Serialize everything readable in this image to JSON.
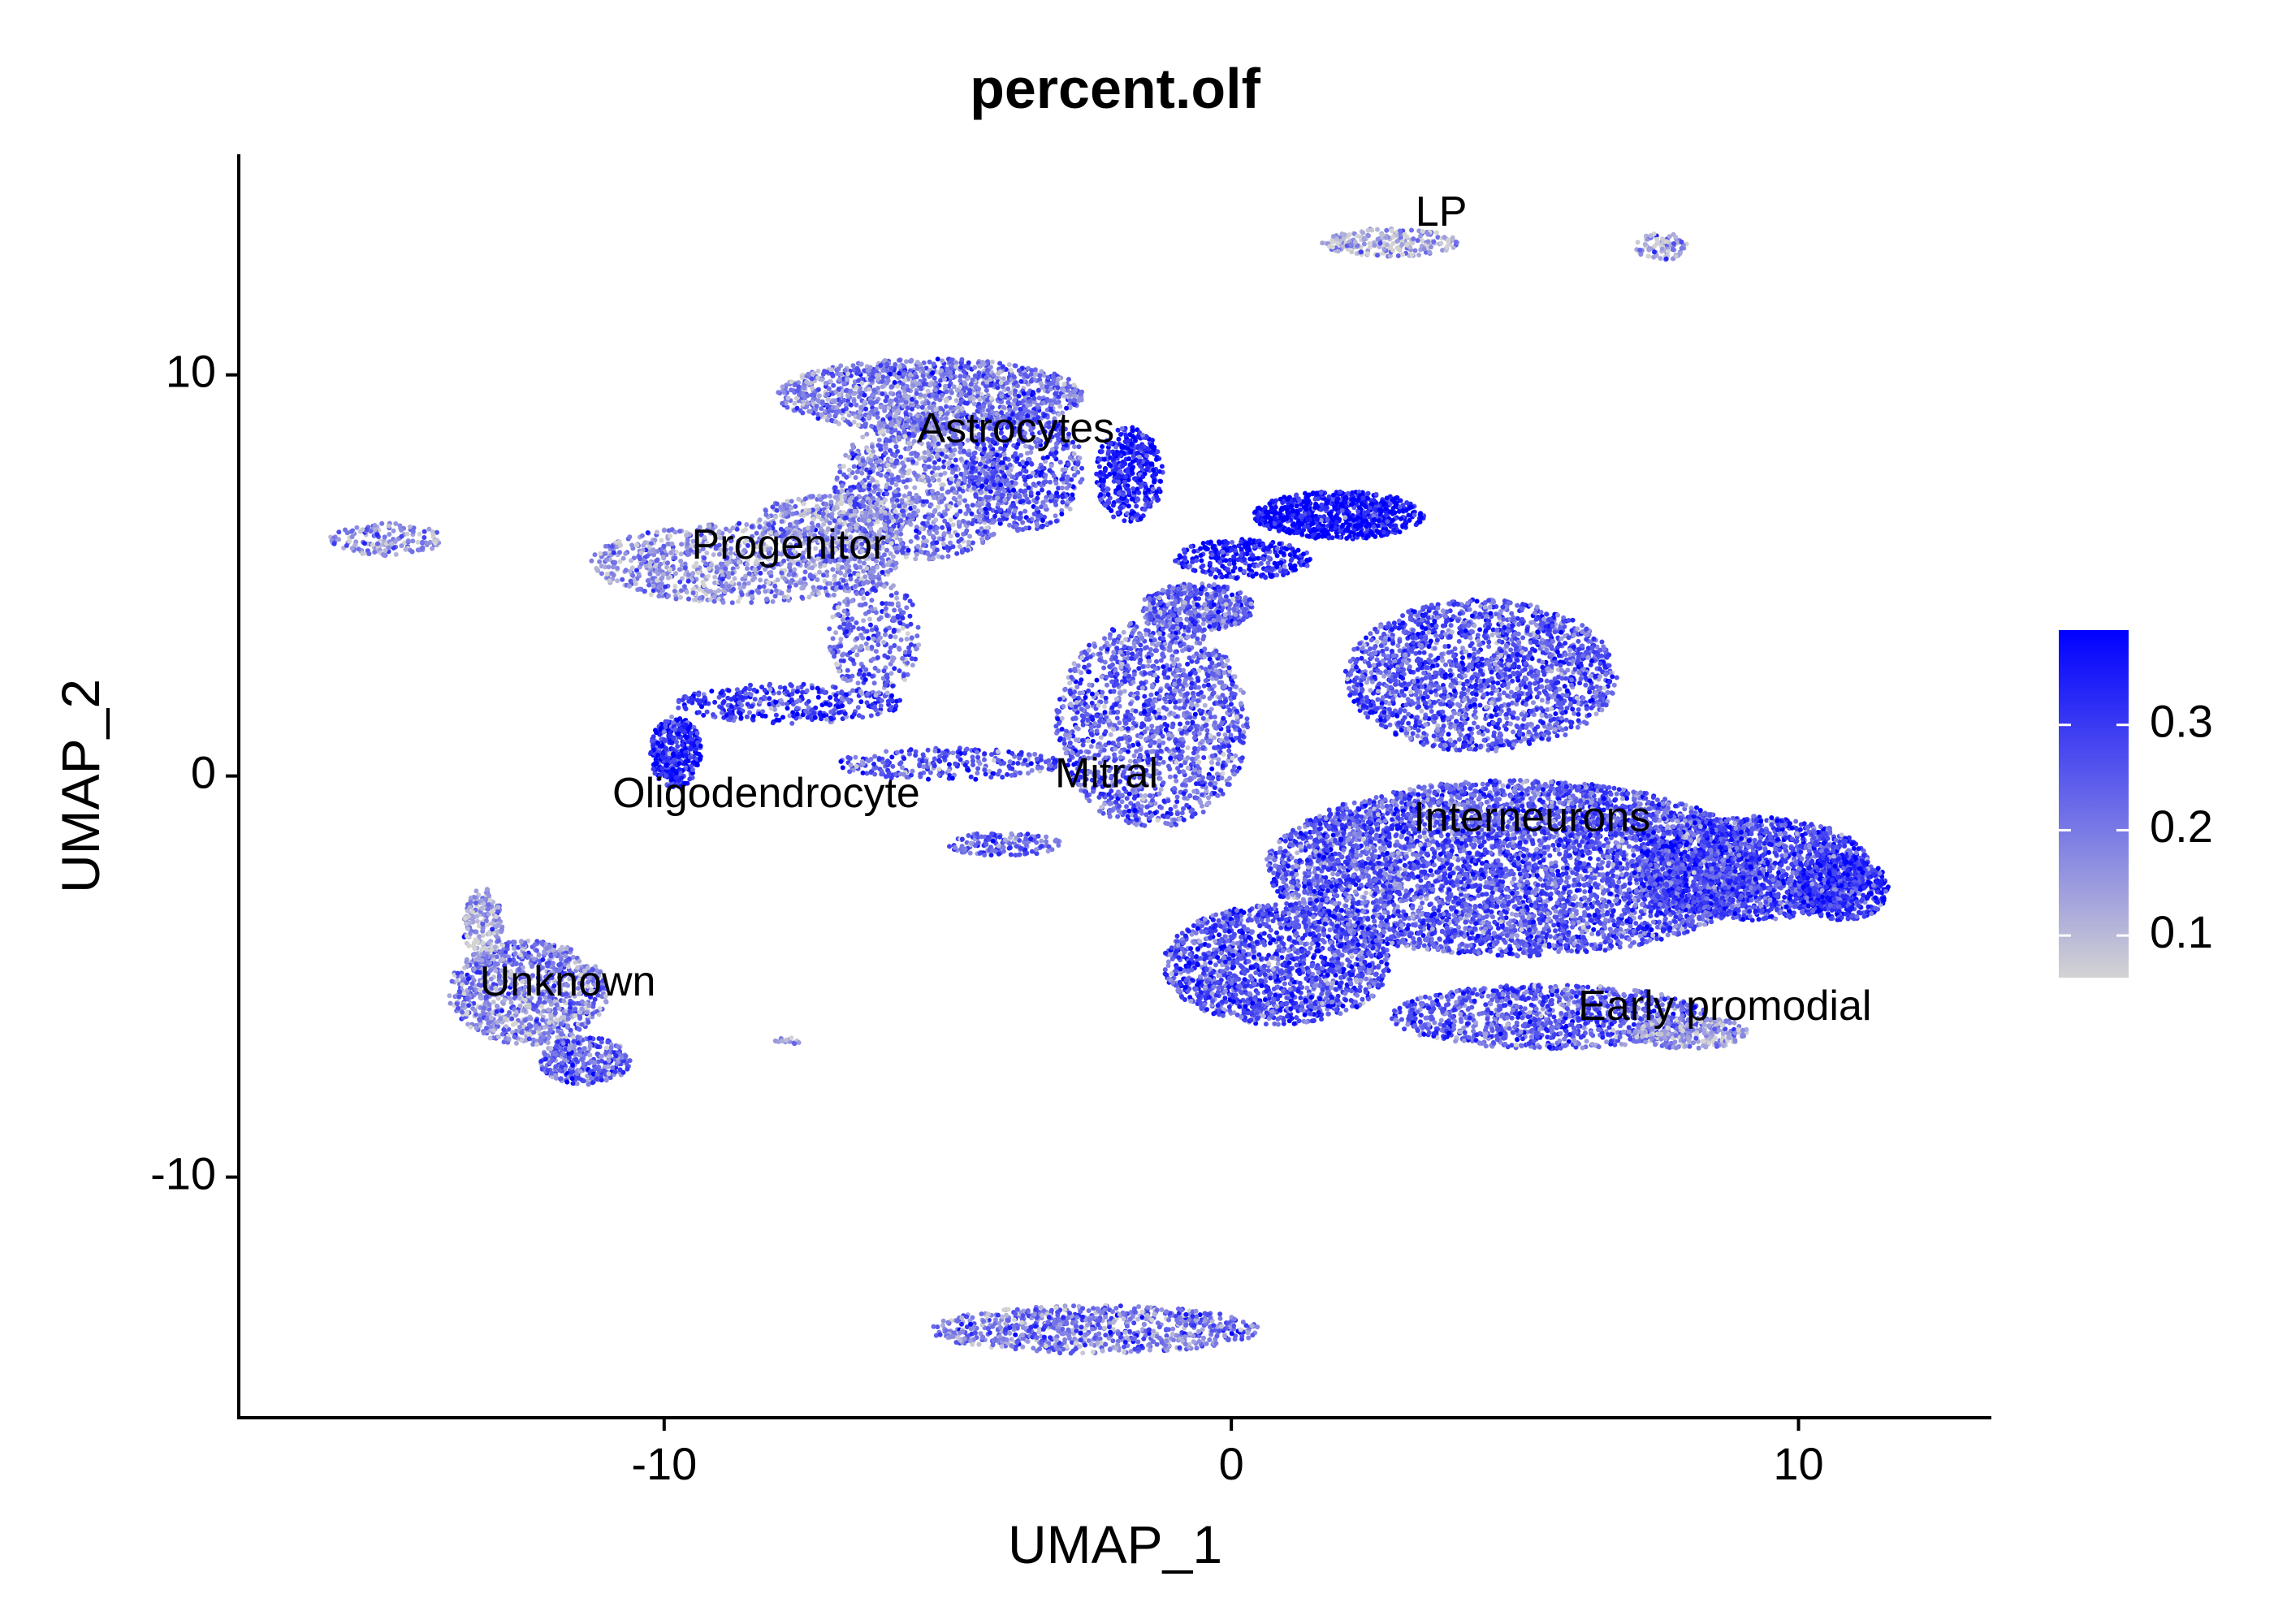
{
  "chart_data": {
    "type": "scatter",
    "title": "percent.olf",
    "xlabel": "UMAP_1",
    "ylabel": "UMAP_2",
    "xlim": [
      -17.5,
      13.4
    ],
    "ylim": [
      -16.0,
      15.5
    ],
    "x_ticks": [
      -10,
      0,
      10
    ],
    "x_tick_labels": [
      "-10",
      "0",
      "10"
    ],
    "y_ticks": [
      -10,
      0,
      10
    ],
    "y_tick_labels": [
      "-10",
      "0",
      "10"
    ],
    "grid": false,
    "legend_position": "right",
    "color_scale": {
      "name": "percent.olf",
      "low_color": "#d3d3d3",
      "high_color": "#0000ff",
      "range": [
        0.06,
        0.39
      ],
      "ticks": [
        0.1,
        0.2,
        0.3
      ],
      "tick_labels": [
        "0.1",
        "0.2",
        "0.3"
      ]
    },
    "cluster_labels": [
      {
        "text": "LP",
        "x": 3.7,
        "y": 14.0
      },
      {
        "text": "Astrocytes",
        "x": -3.8,
        "y": 8.6
      },
      {
        "text": "Progenitor",
        "x": -7.8,
        "y": 5.7
      },
      {
        "text": "Oligodendrocyte",
        "x": -8.2,
        "y": -0.5
      },
      {
        "text": "Mitral",
        "x": -2.2,
        "y": 0.0
      },
      {
        "text": "Interneurons",
        "x": 5.3,
        "y": -1.1
      },
      {
        "text": "Unknown",
        "x": -11.7,
        "y": -5.2
      },
      {
        "text": "Early promodial",
        "x": 8.7,
        "y": -5.8
      }
    ],
    "regions": [
      {
        "name": "LP-island",
        "cx": 2.8,
        "cy": 13.3,
        "rx": 1.2,
        "ry": 0.35,
        "n": 220,
        "mean": 0.12
      },
      {
        "name": "right-island",
        "cx": 7.6,
        "cy": 13.2,
        "rx": 0.5,
        "ry": 0.35,
        "n": 90,
        "mean": 0.13
      },
      {
        "name": "left-island",
        "cx": -14.9,
        "cy": 5.9,
        "rx": 1.0,
        "ry": 0.4,
        "n": 160,
        "mean": 0.16
      },
      {
        "name": "astrocytes-top",
        "cx": -5.3,
        "cy": 9.5,
        "rx": 2.7,
        "ry": 0.9,
        "n": 1400,
        "mean": 0.2
      },
      {
        "name": "astrocytes-lower",
        "cx": -5.4,
        "cy": 7.2,
        "rx": 1.6,
        "ry": 1.8,
        "n": 1100,
        "mean": 0.2
      },
      {
        "name": "astrocytes-right",
        "cx": -3.6,
        "cy": 7.6,
        "rx": 1.0,
        "ry": 1.5,
        "n": 500,
        "mean": 0.26
      },
      {
        "name": "progenitor",
        "cx": -8.6,
        "cy": 5.3,
        "rx": 2.7,
        "ry": 1.0,
        "n": 1000,
        "mean": 0.17
      },
      {
        "name": "progenitor-upper",
        "cx": -7.0,
        "cy": 6.4,
        "rx": 1.4,
        "ry": 0.6,
        "n": 350,
        "mean": 0.16
      },
      {
        "name": "oligodendrocyte",
        "cx": -9.8,
        "cy": 0.6,
        "rx": 0.45,
        "ry": 0.9,
        "n": 400,
        "mean": 0.33
      },
      {
        "name": "stream-olig",
        "cx": -7.8,
        "cy": 1.8,
        "rx": 2.0,
        "ry": 0.5,
        "n": 350,
        "mean": 0.29
      },
      {
        "name": "stream-prog",
        "cx": -6.3,
        "cy": 3.5,
        "rx": 0.8,
        "ry": 1.5,
        "n": 300,
        "mean": 0.22
      },
      {
        "name": "bridge-mitral",
        "cx": -5.0,
        "cy": 0.3,
        "rx": 2.0,
        "ry": 0.4,
        "n": 250,
        "mean": 0.26
      },
      {
        "name": "mitral-tail",
        "cx": -4.0,
        "cy": -1.7,
        "rx": 1.0,
        "ry": 0.3,
        "n": 150,
        "mean": 0.24
      },
      {
        "name": "astro-arm",
        "cx": -1.8,
        "cy": 7.5,
        "rx": 0.6,
        "ry": 1.2,
        "n": 400,
        "mean": 0.34
      },
      {
        "name": "mitral",
        "cx": -1.4,
        "cy": 1.3,
        "rx": 1.7,
        "ry": 2.6,
        "n": 1600,
        "mean": 0.24
      },
      {
        "name": "mitral-top",
        "cx": -0.6,
        "cy": 4.2,
        "rx": 1.0,
        "ry": 0.6,
        "n": 450,
        "mean": 0.24
      },
      {
        "name": "top-blob",
        "cx": 1.9,
        "cy": 6.5,
        "rx": 1.5,
        "ry": 0.6,
        "n": 800,
        "mean": 0.37
      },
      {
        "name": "top-arm",
        "cx": 0.2,
        "cy": 5.4,
        "rx": 1.2,
        "ry": 0.5,
        "n": 300,
        "mean": 0.35
      },
      {
        "name": "interneurons-upper",
        "cx": 4.4,
        "cy": 2.5,
        "rx": 2.4,
        "ry": 1.9,
        "n": 2000,
        "mean": 0.26
      },
      {
        "name": "interneurons-main",
        "cx": 5.0,
        "cy": -2.3,
        "rx": 4.4,
        "ry": 2.2,
        "n": 5600,
        "mean": 0.26
      },
      {
        "name": "interneurons-right",
        "cx": 9.2,
        "cy": -2.3,
        "rx": 2.1,
        "ry": 1.3,
        "n": 1900,
        "mean": 0.28
      },
      {
        "name": "interneurons-tip",
        "cx": 10.8,
        "cy": -2.8,
        "rx": 0.8,
        "ry": 0.8,
        "n": 500,
        "mean": 0.31
      },
      {
        "name": "interneurons-lower-left",
        "cx": 0.8,
        "cy": -4.7,
        "rx": 2.0,
        "ry": 1.5,
        "n": 1600,
        "mean": 0.27
      },
      {
        "name": "early-promodial",
        "cx": 5.6,
        "cy": -6.0,
        "rx": 2.8,
        "ry": 0.8,
        "n": 1100,
        "mean": 0.25
      },
      {
        "name": "early-promodial-tail",
        "cx": 8.1,
        "cy": -6.4,
        "rx": 1.0,
        "ry": 0.4,
        "n": 280,
        "mean": 0.14
      },
      {
        "name": "unknown",
        "cx": -12.4,
        "cy": -5.4,
        "rx": 1.4,
        "ry": 1.3,
        "n": 1000,
        "mean": 0.18
      },
      {
        "name": "unknown-tail",
        "cx": -11.4,
        "cy": -7.1,
        "rx": 0.8,
        "ry": 0.6,
        "n": 350,
        "mean": 0.24
      },
      {
        "name": "unknown-top",
        "cx": -13.2,
        "cy": -3.7,
        "rx": 0.35,
        "ry": 0.9,
        "n": 200,
        "mean": 0.14
      },
      {
        "name": "bottom-island",
        "cx": -2.4,
        "cy": -13.8,
        "rx": 2.9,
        "ry": 0.6,
        "n": 800,
        "mean": 0.2
      },
      {
        "name": "small-dot",
        "cx": -7.8,
        "cy": -6.6,
        "rx": 0.25,
        "ry": 0.08,
        "n": 15,
        "mean": 0.18
      }
    ]
  }
}
